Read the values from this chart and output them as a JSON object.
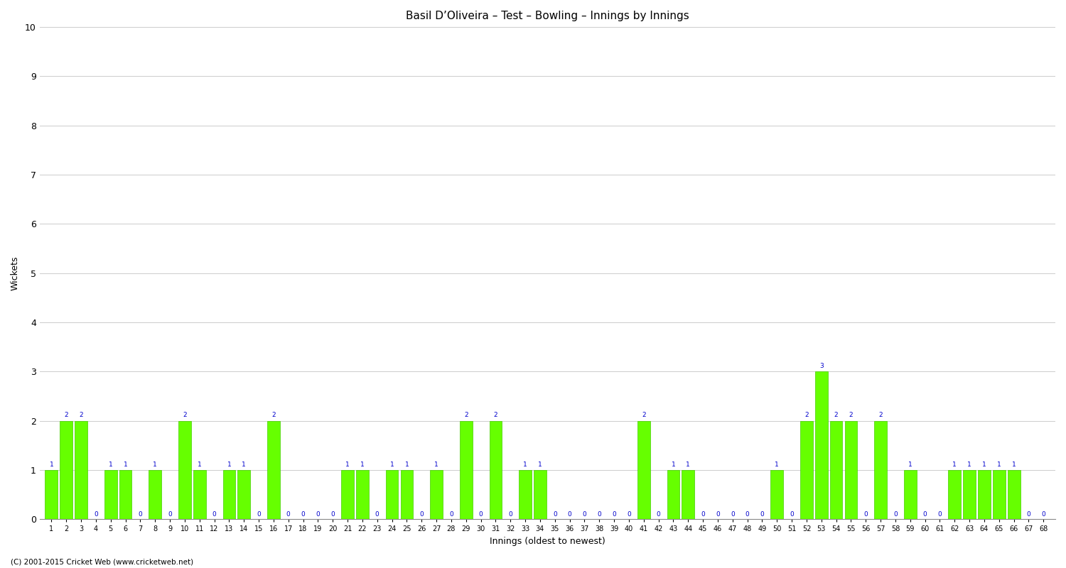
{
  "title": "Basil D’Oliveira – Test – Bowling – Innings by Innings",
  "xlabel": "Innings (oldest to newest)",
  "ylabel": "Wickets",
  "bar_color": "#66ff00",
  "bar_edge_color": "#44cc00",
  "label_color": "#0000cc",
  "background_color": "#ffffff",
  "grid_color": "#cccccc",
  "ylim_max": 10,
  "yticks": [
    0,
    1,
    2,
    3,
    4,
    5,
    6,
    7,
    8,
    9,
    10
  ],
  "footer": "(C) 2001-2015 Cricket Web (www.cricketweb.net)",
  "innings_labels": [
    "1",
    "2",
    "3",
    "4",
    "5",
    "6",
    "7",
    "8",
    "9",
    "10",
    "11",
    "12",
    "13",
    "14",
    "15",
    "16",
    "17",
    "18",
    "19",
    "20",
    "21",
    "22",
    "23",
    "24",
    "25",
    "26",
    "27",
    "28",
    "29",
    "30",
    "31",
    "32",
    "33",
    "34",
    "35",
    "36",
    "37",
    "38",
    "39",
    "40",
    "41",
    "42",
    "43",
    "44",
    "45",
    "46",
    "47",
    "48",
    "49",
    "50",
    "51",
    "52",
    "53",
    "54",
    "55",
    "56",
    "57",
    "58",
    "59",
    "60",
    "61",
    "62",
    "63",
    "64",
    "65",
    "66",
    "67",
    "68"
  ],
  "wickets": [
    1,
    2,
    2,
    0,
    1,
    1,
    0,
    1,
    0,
    2,
    1,
    0,
    1,
    1,
    0,
    2,
    0,
    0,
    0,
    0,
    1,
    1,
    0,
    1,
    1,
    0,
    1,
    0,
    2,
    0,
    2,
    0,
    1,
    1,
    0,
    0,
    0,
    0,
    0,
    0,
    2,
    0,
    1,
    1,
    0,
    0,
    0,
    0,
    0,
    1,
    0,
    2,
    3,
    2,
    2,
    0,
    2,
    0,
    1,
    0,
    0,
    1,
    1,
    1,
    1,
    1,
    0,
    0
  ]
}
